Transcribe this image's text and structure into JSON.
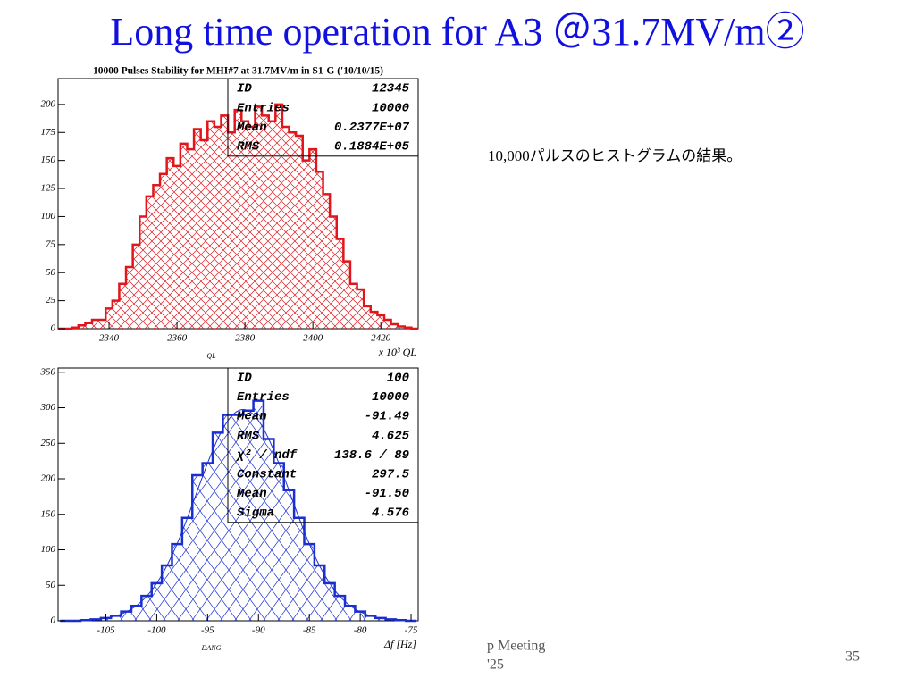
{
  "slide": {
    "title": "Long time operation for A3 ＠31.7MV/m②",
    "note": "10,000パルスのヒストグラムの結果。",
    "footer": "p Meeting",
    "footer_year": "'25",
    "page": "35"
  },
  "chart_data": [
    {
      "type": "histogram",
      "title": "10000 Pulses Stability for MHI#7 at 31.7MV/m in S1-G ('10/10/15)",
      "x_name": "QL",
      "xlabel": "x 10³ QL",
      "bins": [
        2325,
        2327,
        2329,
        2331,
        2333,
        2335,
        2337,
        2339,
        2341,
        2343,
        2345,
        2347,
        2349,
        2351,
        2353,
        2355,
        2357,
        2359,
        2361,
        2363,
        2365,
        2367,
        2369,
        2371,
        2373,
        2375,
        2377,
        2379,
        2381,
        2383,
        2385,
        2387,
        2389,
        2391,
        2393,
        2395,
        2397,
        2399,
        2401,
        2403,
        2405,
        2407,
        2409,
        2411,
        2413,
        2415,
        2417,
        2419,
        2421,
        2423,
        2425,
        2427,
        2429,
        2431
      ],
      "values": [
        0,
        0,
        1,
        3,
        5,
        8,
        8,
        18,
        25,
        40,
        55,
        75,
        100,
        118,
        128,
        138,
        152,
        145,
        165,
        160,
        178,
        168,
        185,
        180,
        190,
        175,
        195,
        185,
        180,
        198,
        190,
        185,
        200,
        180,
        175,
        172,
        150,
        160,
        140,
        120,
        100,
        80,
        60,
        40,
        35,
        20,
        15,
        12,
        8,
        4,
        2,
        1,
        0
      ],
      "color": "#e0161c",
      "xlim": [
        2325,
        2431
      ],
      "ylim": [
        0,
        223
      ],
      "xticks": [
        2340,
        2360,
        2380,
        2400,
        2420
      ],
      "yticks": [
        0,
        25,
        50,
        75,
        100,
        125,
        150,
        175,
        200
      ],
      "stats": [
        {
          "label": "ID",
          "value": "12345"
        },
        {
          "label": "Entries",
          "value": "10000"
        },
        {
          "label": "Mean",
          "value": "0.2377E+07"
        },
        {
          "label": "RMS",
          "value": "0.1884E+05"
        }
      ]
    },
    {
      "type": "histogram",
      "x_name": "DANG",
      "xlabel": "Δf [Hz]",
      "bins": [
        -109.5,
        -108.5,
        -107.5,
        -106.5,
        -105.5,
        -104.5,
        -103.5,
        -102.5,
        -101.5,
        -100.5,
        -99.5,
        -98.5,
        -97.5,
        -96.5,
        -95.5,
        -94.5,
        -93.5,
        -92.5,
        -91.5,
        -90.5,
        -89.5,
        -88.5,
        -87.5,
        -86.5,
        -85.5,
        -84.5,
        -83.5,
        -82.5,
        -81.5,
        -80.5,
        -79.5,
        -78.5,
        -77.5,
        -76.5,
        -75.5,
        -74.5
      ],
      "values": [
        0,
        0,
        1,
        2,
        4,
        7,
        13,
        21,
        35,
        53,
        78,
        108,
        145,
        205,
        222,
        265,
        290,
        290,
        296,
        310,
        256,
        222,
        184,
        145,
        108,
        78,
        53,
        35,
        21,
        13,
        7,
        4,
        2,
        1,
        0
      ],
      "color": "#1a2fd0",
      "xlim": [
        -109.7,
        -74.3
      ],
      "ylim": [
        0,
        356
      ],
      "xticks": [
        -105,
        -100,
        -95,
        -90,
        -85,
        -80,
        -75
      ],
      "yticks": [
        0,
        50,
        100,
        150,
        200,
        250,
        300,
        350
      ],
      "fit": {
        "constant": 297.5,
        "mean": -91.5,
        "sigma": 4.576
      },
      "stats": [
        {
          "label": "ID",
          "value": "100"
        },
        {
          "label": "Entries",
          "value": "10000"
        },
        {
          "label": "Mean",
          "value": "-91.49"
        },
        {
          "label": "RMS",
          "value": "4.625"
        },
        {
          "label": "χ² / ndf",
          "value": "138.6  /  89"
        },
        {
          "label": "Constant",
          "value": "297.5"
        },
        {
          "label": "Mean",
          "value": "-91.50"
        },
        {
          "label": "Sigma",
          "value": "4.576"
        }
      ]
    }
  ]
}
